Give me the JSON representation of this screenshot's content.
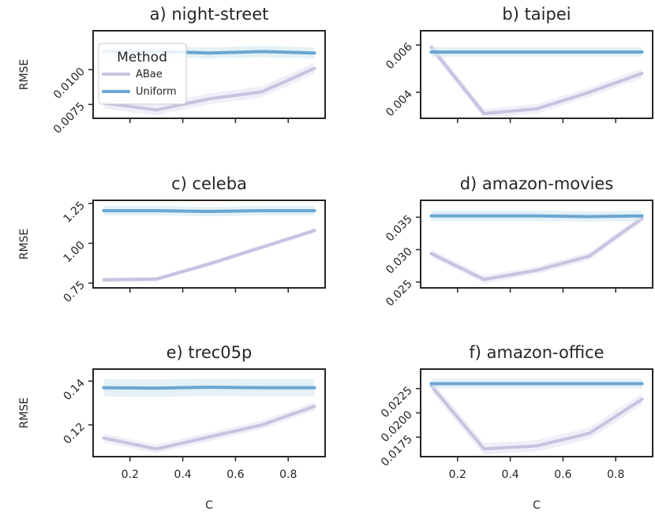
{
  "legend": {
    "title": "Method",
    "entries": [
      {
        "name": "ABae",
        "color": "#c6c3e2"
      },
      {
        "name": "Uniform",
        "color": "#6aa7d3"
      }
    ]
  },
  "colors": {
    "abae": "#c6c3e2",
    "abae_band": "#e3e1f2",
    "uniform": "#6aa7d3",
    "uniform_band": "#cfe5f1",
    "axes": "#262626"
  },
  "x_ticks": [
    "0.2",
    "0.4",
    "0.6",
    "0.8"
  ],
  "chart_data": [
    {
      "type": "line",
      "title": "a) night-street",
      "xlabel": "",
      "ylabel": "RMSE",
      "xlim": [
        0.06,
        0.94
      ],
      "ylim": [
        0.0065,
        0.0128
      ],
      "x": [
        0.1,
        0.3,
        0.5,
        0.7,
        0.9
      ],
      "yticks": [
        0.0075,
        0.01
      ],
      "ytick_labels": [
        "0.0075",
        "0.0100"
      ],
      "ytick_rotate": true,
      "series": [
        {
          "name": "ABae",
          "values": [
            0.0076,
            0.0071,
            0.0079,
            0.0084,
            0.0101
          ],
          "band": 0.0004
        },
        {
          "name": "Uniform",
          "values": [
            0.0113,
            0.0113,
            0.0112,
            0.0113,
            0.0112
          ],
          "band": 0.0004
        }
      ]
    },
    {
      "type": "line",
      "title": "b) taipei",
      "xlabel": "",
      "ylabel": "",
      "xlim": [
        0.06,
        0.94
      ],
      "ylim": [
        0.0029,
        0.0066
      ],
      "x": [
        0.1,
        0.3,
        0.5,
        0.7,
        0.9
      ],
      "yticks": [
        0.004,
        0.006
      ],
      "ytick_labels": [
        "0.004",
        "0.006"
      ],
      "ytick_rotate": true,
      "series": [
        {
          "name": "ABae",
          "values": [
            0.0059,
            0.0031,
            0.0033,
            0.004,
            0.0048
          ],
          "band": 0.0002
        },
        {
          "name": "Uniform",
          "values": [
            0.0057,
            0.0057,
            0.0057,
            0.0057,
            0.0057
          ],
          "band": 0.0002
        }
      ]
    },
    {
      "type": "line",
      "title": "c) celeba",
      "xlabel": "",
      "ylabel": "RMSE",
      "xlim": [
        0.06,
        0.94
      ],
      "ylim": [
        0.72,
        1.27
      ],
      "x": [
        0.1,
        0.3,
        0.5,
        0.7,
        0.9
      ],
      "yticks": [
        0.75,
        1.0,
        1.25
      ],
      "ytick_labels": [
        "0.75",
        "1.00",
        "1.25"
      ],
      "ytick_rotate": true,
      "series": [
        {
          "name": "ABae",
          "values": [
            0.77,
            0.775,
            0.87,
            0.975,
            1.08
          ],
          "band": 0.015
        },
        {
          "name": "Uniform",
          "values": [
            1.205,
            1.205,
            1.2,
            1.205,
            1.205
          ],
          "band": 0.03
        }
      ]
    },
    {
      "type": "line",
      "title": "d) amazon-movies",
      "xlabel": "",
      "ylabel": "",
      "xlim": [
        0.06,
        0.94
      ],
      "ylim": [
        0.0241,
        0.0376
      ],
      "x": [
        0.1,
        0.3,
        0.5,
        0.7,
        0.9
      ],
      "yticks": [
        0.025,
        0.03,
        0.035
      ],
      "ytick_labels": [
        "0.025",
        "0.030",
        "0.035"
      ],
      "ytick_rotate": true,
      "series": [
        {
          "name": "ABae",
          "values": [
            0.0294,
            0.0254,
            0.0268,
            0.029,
            0.0348
          ],
          "band": 0.0006
        },
        {
          "name": "Uniform",
          "values": [
            0.0352,
            0.0352,
            0.0352,
            0.0351,
            0.0352
          ],
          "band": 0.0008
        }
      ]
    },
    {
      "type": "line",
      "title": "e) trec05p",
      "xlabel": "C",
      "ylabel": "RMSE",
      "xlim": [
        0.06,
        0.94
      ],
      "ylim": [
        0.1055,
        0.1455
      ],
      "x": [
        0.1,
        0.3,
        0.5,
        0.7,
        0.9
      ],
      "yticks": [
        0.12,
        0.14
      ],
      "ytick_labels": [
        "0.12",
        "0.14"
      ],
      "ytick_rotate": true,
      "series": [
        {
          "name": "ABae",
          "values": [
            0.114,
            0.109,
            0.1145,
            0.12,
            0.1285
          ],
          "band": 0.002
        },
        {
          "name": "Uniform",
          "values": [
            0.137,
            0.1368,
            0.1372,
            0.137,
            0.137
          ],
          "band": 0.004
        }
      ]
    },
    {
      "type": "line",
      "title": "f) amazon-office",
      "xlabel": "C",
      "ylabel": "",
      "xlim": [
        0.06,
        0.94
      ],
      "ylim": [
        0.0155,
        0.0245
      ],
      "x": [
        0.1,
        0.3,
        0.5,
        0.7,
        0.9
      ],
      "yticks": [
        0.0175,
        0.02,
        0.0225
      ],
      "ytick_labels": [
        "0.0175",
        "0.0200",
        "0.0225"
      ],
      "ytick_rotate": true,
      "series": [
        {
          "name": "ABae",
          "values": [
            0.0228,
            0.0163,
            0.0166,
            0.0179,
            0.0214
          ],
          "band": 0.0006
        },
        {
          "name": "Uniform",
          "values": [
            0.023,
            0.023,
            0.023,
            0.023,
            0.023
          ],
          "band": 0.0005
        }
      ]
    }
  ]
}
